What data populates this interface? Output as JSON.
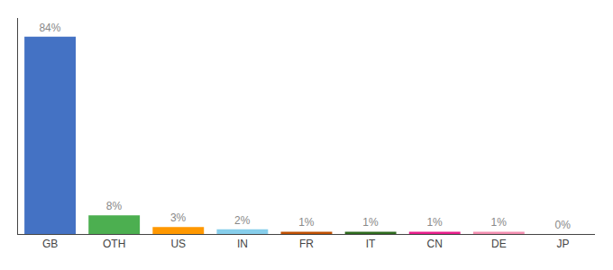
{
  "chart_data": {
    "type": "bar",
    "categories": [
      "GB",
      "OTH",
      "US",
      "IN",
      "FR",
      "IT",
      "CN",
      "DE",
      "JP"
    ],
    "values": [
      84,
      8,
      3,
      2,
      1,
      1,
      1,
      1,
      0
    ],
    "value_labels": [
      "84%",
      "8%",
      "3%",
      "2%",
      "1%",
      "1%",
      "1%",
      "1%",
      "0%"
    ],
    "colors": [
      "#4472c4",
      "#4caf50",
      "#ff9800",
      "#87ceeb",
      "#c05000",
      "#2e6b1e",
      "#e91e8c",
      "#f48fb1",
      "#cccccc"
    ],
    "ylim": [
      0,
      92
    ],
    "grid": false,
    "data_labels": true,
    "tick_labels": "x"
  }
}
